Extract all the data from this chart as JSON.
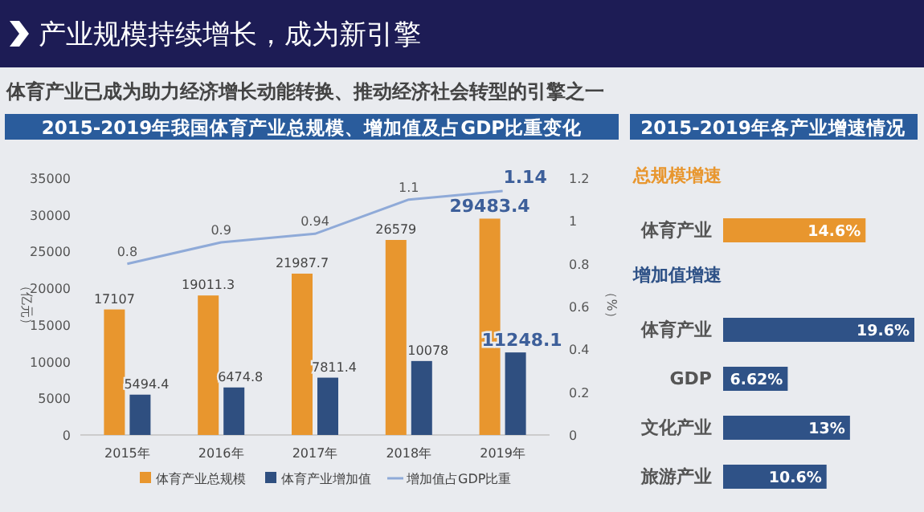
{
  "chart_data": [
    {
      "type": "bar",
      "title": "2015-2019年我国体育产业总规模、增加值及占GDP比重变化",
      "annotations": [
        "产业规模持续增长，成为新引擎",
        "体育产业已成为助力经济增长动能转换、推动经济社会转型的引擎之一"
      ],
      "ylabel": "（亿元）",
      "y2label": "（%）",
      "categories": [
        "2015年",
        "2016年",
        "2017年",
        "2018年",
        "2019年"
      ],
      "series": [
        {
          "name": "体育产业总规模",
          "color": "#e8962e",
          "values": [
            17107,
            19011.3,
            21987.7,
            26579,
            29483.4
          ]
        },
        {
          "name": "体育产业增加值",
          "color": "#2f4f80",
          "values": [
            5494.4,
            6474.8,
            7811.4,
            10078,
            11248.1
          ]
        },
        {
          "name": "增加值占GDP比重",
          "type": "line",
          "axis": "y2",
          "color": "#8faad8",
          "values": [
            0.8,
            0.9,
            0.94,
            1.1,
            1.14
          ]
        }
      ],
      "ylim": [
        0,
        35000
      ],
      "yticks": [
        0,
        5000,
        10000,
        15000,
        20000,
        25000,
        30000,
        35000
      ],
      "y2lim": [
        0,
        1.2
      ],
      "y2ticks": [
        0,
        0.2,
        0.4,
        0.6,
        0.8,
        1,
        1.2
      ],
      "data_labels": true,
      "legend": "bottom",
      "marker": "none"
    },
    {
      "type": "bar",
      "orientation": "horizontal",
      "title": "2015-2019年各产业增速情况",
      "subtitle": "总规模增速",
      "categories": [
        "体育产业"
      ],
      "values": [
        14.6
      ],
      "value_labels": [
        "14.6%"
      ],
      "color": "#e8962e"
    },
    {
      "type": "bar",
      "orientation": "horizontal",
      "title": "增加值增速",
      "categories": [
        "体育产业",
        "GDP",
        "文化产业",
        "旅游产业"
      ],
      "values": [
        19.6,
        6.62,
        13,
        10.6
      ],
      "value_labels": [
        "19.6%",
        "6.62%",
        "13%",
        "10.6%"
      ],
      "color": "#2f5287"
    }
  ]
}
